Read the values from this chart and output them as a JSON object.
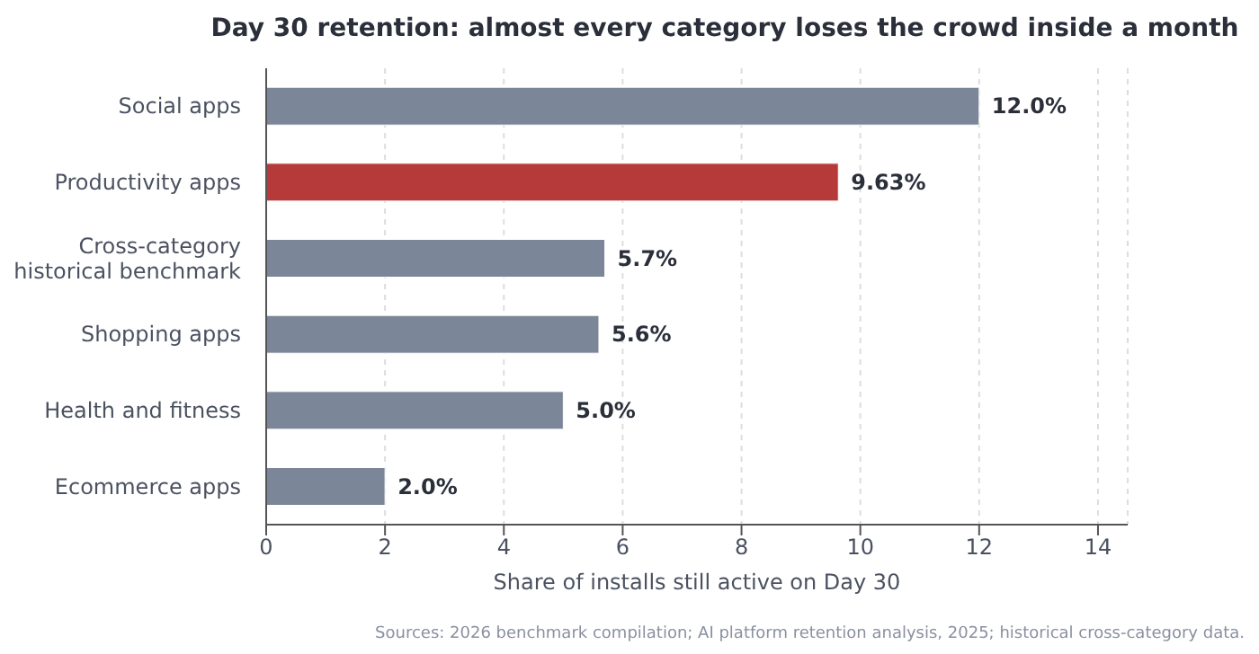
{
  "chart_data": {
    "type": "bar",
    "orientation": "horizontal",
    "title": "Day 30 retention: almost every category loses the crowd inside a month",
    "xlabel": "Share of installs still active on Day 30",
    "categories": [
      "Social apps",
      "Productivity apps",
      "Cross-category\nhistorical benchmark",
      "Shopping apps",
      "Health and fitness",
      "Ecommerce apps"
    ],
    "values": [
      12.0,
      9.63,
      5.7,
      5.6,
      5.0,
      2.0
    ],
    "colors": [
      "#7b8698",
      "#b73a3a",
      "#7b8698",
      "#7b8698",
      "#7b8698",
      "#7b8698"
    ],
    "value_labels": [
      "12.0%",
      "9.63%",
      "5.7%",
      "5.6%",
      "5.0%",
      "2.0%"
    ],
    "xlim": [
      0,
      14.5
    ],
    "xticks": [
      0,
      2,
      4,
      6,
      8,
      10,
      12,
      14
    ],
    "grid": "x",
    "annotations": [
      "Sources: 2026 benchmark compilation; AI platform retention analysis, 2025; historical cross-category data."
    ]
  }
}
